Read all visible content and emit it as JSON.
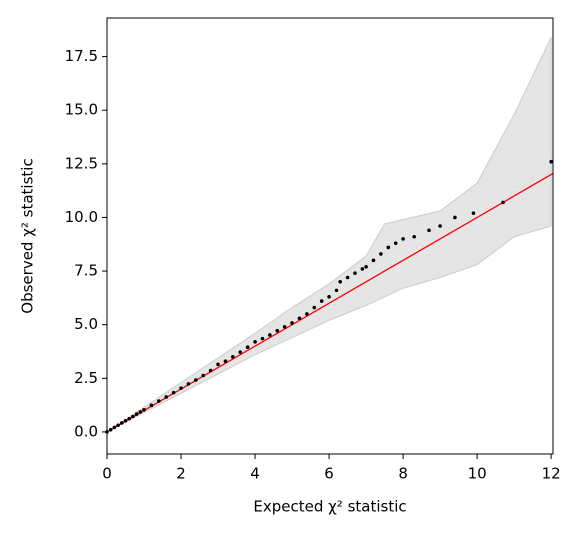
{
  "chart_data": {
    "type": "scatter",
    "x_label": "Expected χ² statistic",
    "y_label": "Observed χ² statistic",
    "xlim": [
      0,
      12.05
    ],
    "ylim": [
      -1.03,
      19.3
    ],
    "xticks": [
      0,
      2,
      4,
      6,
      8,
      10,
      12
    ],
    "yticks": [
      {
        "value": 0,
        "label": "0.0"
      },
      {
        "value": 2.5,
        "label": "2.5"
      },
      {
        "value": 5,
        "label": "5.0"
      },
      {
        "value": 7.5,
        "label": "7.5"
      },
      {
        "value": 10,
        "label": "10.0"
      },
      {
        "value": 12.5,
        "label": "12.5"
      },
      {
        "value": 15,
        "label": "15.0"
      },
      {
        "value": 17.5,
        "label": "17.5"
      }
    ],
    "band": {
      "color": "#e5e5e5",
      "x": [
        0,
        1,
        2,
        3,
        4,
        5,
        6,
        7,
        7.5,
        8,
        9,
        10,
        11,
        12
      ],
      "upper": [
        0,
        1.15,
        2.3,
        3.45,
        4.6,
        5.8,
        6.9,
        8.2,
        9.7,
        9.9,
        10.3,
        11.6,
        14.8,
        18.4
      ],
      "lower": [
        0,
        0.9,
        1.8,
        2.7,
        3.6,
        4.4,
        5.2,
        5.9,
        6.3,
        6.7,
        7.2,
        7.8,
        9.1,
        9.6
      ]
    },
    "reference_line": {
      "color": "#ff0000",
      "x": [
        0,
        12.05
      ],
      "values": [
        0,
        12.05
      ]
    },
    "points": {
      "color": "#000000",
      "x": [
        0.0,
        0.1,
        0.2,
        0.3,
        0.4,
        0.5,
        0.6,
        0.7,
        0.8,
        0.9,
        1.0,
        1.2,
        1.4,
        1.6,
        1.8,
        2.0,
        2.2,
        2.4,
        2.6,
        2.8,
        3.0,
        3.2,
        3.4,
        3.6,
        3.8,
        4.0,
        4.2,
        4.4,
        4.6,
        4.8,
        5.0,
        5.2,
        5.4,
        5.6,
        5.8,
        6.0,
        6.2,
        6.3,
        6.5,
        6.7,
        6.9,
        7.0,
        7.2,
        7.4,
        7.6,
        7.8,
        8.0,
        8.3,
        8.7,
        9.0,
        9.4,
        9.9,
        10.7,
        12.0
      ],
      "values": [
        0.0,
        0.1,
        0.21,
        0.31,
        0.42,
        0.52,
        0.62,
        0.72,
        0.83,
        0.93,
        1.03,
        1.24,
        1.44,
        1.63,
        1.83,
        2.04,
        2.24,
        2.42,
        2.63,
        2.86,
        3.15,
        3.3,
        3.5,
        3.72,
        3.95,
        4.2,
        4.35,
        4.52,
        4.72,
        4.9,
        5.08,
        5.3,
        5.5,
        5.8,
        6.1,
        6.3,
        6.6,
        7.0,
        7.2,
        7.4,
        7.6,
        7.7,
        8.0,
        8.3,
        8.6,
        8.8,
        9.0,
        9.1,
        9.4,
        9.6,
        10.0,
        10.2,
        10.7,
        12.6
      ]
    }
  }
}
